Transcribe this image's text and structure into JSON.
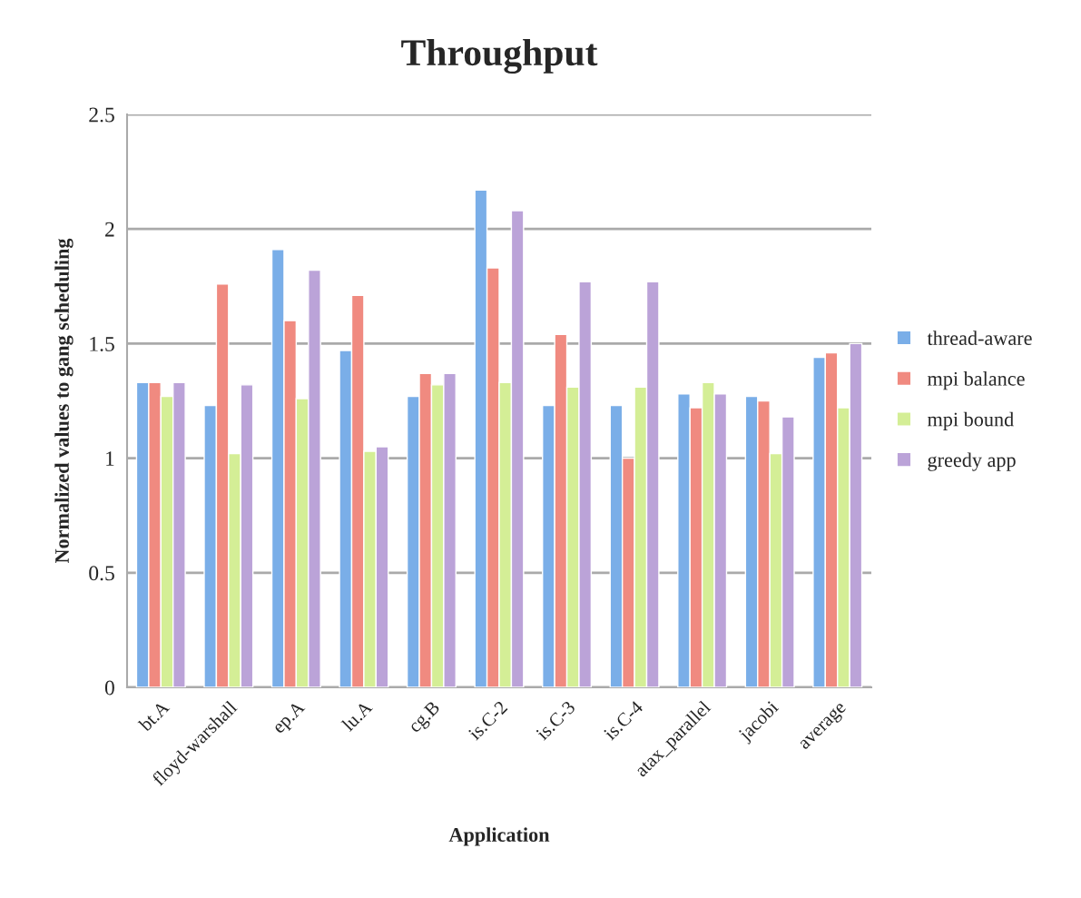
{
  "chart_data": {
    "type": "bar",
    "title": "Throughput",
    "xlabel": "Application",
    "ylabel": "Normalized values to gang scheduling",
    "categories": [
      "bt.A",
      "floyd-warshall",
      "ep.A",
      "lu.A",
      "cg.B",
      "is.C-2",
      "is.C-3",
      "is.C-4",
      "atax_parallel",
      "jacobi",
      "average"
    ],
    "series": [
      {
        "name": "thread-aware",
        "color": "#7aaee8",
        "values": [
          1.33,
          1.23,
          1.91,
          1.47,
          1.27,
          2.17,
          1.23,
          1.23,
          1.28,
          1.27,
          1.44
        ]
      },
      {
        "name": "mpi balance",
        "color": "#f08a80",
        "values": [
          1.33,
          1.76,
          1.6,
          1.71,
          1.37,
          1.83,
          1.54,
          1.0,
          1.22,
          1.25,
          1.46
        ]
      },
      {
        "name": "mpi bound",
        "color": "#d4ee96",
        "values": [
          1.27,
          1.02,
          1.26,
          1.03,
          1.32,
          1.33,
          1.31,
          1.31,
          1.33,
          1.02,
          1.22
        ]
      },
      {
        "name": "greedy app",
        "color": "#bba3d8",
        "values": [
          1.33,
          1.32,
          1.82,
          1.05,
          1.37,
          2.08,
          1.77,
          1.77,
          1.28,
          1.18,
          1.5
        ]
      }
    ],
    "ylim": [
      0,
      2.5
    ],
    "yticks": [
      0,
      0.5,
      1,
      1.5,
      2,
      2.5
    ],
    "grid": "y",
    "legend": "right"
  }
}
